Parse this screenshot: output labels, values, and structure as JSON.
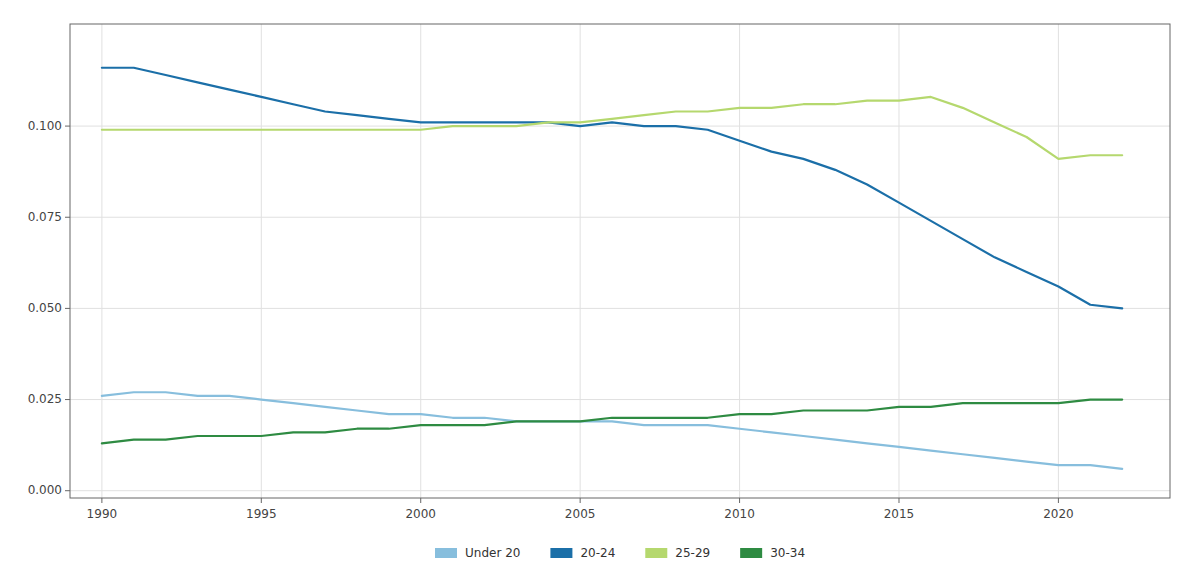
{
  "chart_data": {
    "type": "line",
    "x": [
      1990,
      1991,
      1992,
      1993,
      1994,
      1995,
      1996,
      1997,
      1998,
      1999,
      2000,
      2001,
      2002,
      2003,
      2004,
      2005,
      2006,
      2007,
      2008,
      2009,
      2010,
      2011,
      2012,
      2013,
      2014,
      2015,
      2016,
      2017,
      2018,
      2019,
      2020,
      2021,
      2022
    ],
    "series": [
      {
        "name": "Under 20",
        "color": "#87BEDD",
        "values": [
          0.026,
          0.027,
          0.027,
          0.026,
          0.026,
          0.025,
          0.024,
          0.023,
          0.022,
          0.021,
          0.021,
          0.02,
          0.02,
          0.019,
          0.019,
          0.019,
          0.019,
          0.018,
          0.018,
          0.018,
          0.017,
          0.016,
          0.015,
          0.014,
          0.013,
          0.012,
          0.011,
          0.01,
          0.009,
          0.008,
          0.007,
          0.007,
          0.006
        ]
      },
      {
        "name": "20-24",
        "color": "#1B6FA8",
        "values": [
          0.116,
          0.116,
          0.114,
          0.112,
          0.11,
          0.108,
          0.106,
          0.104,
          0.103,
          0.102,
          0.101,
          0.101,
          0.101,
          0.101,
          0.101,
          0.1,
          0.101,
          0.1,
          0.1,
          0.099,
          0.096,
          0.093,
          0.091,
          0.088,
          0.084,
          0.079,
          0.074,
          0.069,
          0.064,
          0.06,
          0.056,
          0.051,
          0.05
        ]
      },
      {
        "name": "25-29",
        "color": "#B5D86E",
        "values": [
          0.099,
          0.099,
          0.099,
          0.099,
          0.099,
          0.099,
          0.099,
          0.099,
          0.099,
          0.099,
          0.099,
          0.1,
          0.1,
          0.1,
          0.101,
          0.101,
          0.102,
          0.103,
          0.104,
          0.104,
          0.105,
          0.105,
          0.106,
          0.106,
          0.107,
          0.107,
          0.108,
          0.105,
          0.101,
          0.097,
          0.091,
          0.092,
          0.092
        ]
      },
      {
        "name": "30-34",
        "color": "#2E8B42",
        "values": [
          0.013,
          0.014,
          0.014,
          0.015,
          0.015,
          0.015,
          0.016,
          0.016,
          0.017,
          0.017,
          0.018,
          0.018,
          0.018,
          0.019,
          0.019,
          0.019,
          0.02,
          0.02,
          0.02,
          0.02,
          0.021,
          0.021,
          0.022,
          0.022,
          0.022,
          0.023,
          0.023,
          0.024,
          0.024,
          0.024,
          0.024,
          0.025,
          0.025
        ]
      }
    ],
    "xlim": [
      1989.0,
      2023.5
    ],
    "ylim": [
      -0.002,
      0.128
    ],
    "xticks": [
      1990,
      1995,
      2000,
      2005,
      2010,
      2015,
      2020
    ],
    "yticks": [
      {
        "value": 0.0,
        "label": "0.000"
      },
      0.025,
      {
        "value": 0.05,
        "label": "0.050"
      },
      0.075,
      {
        "value": 0.1,
        "label": "0.100"
      }
    ],
    "grid": true,
    "legend": "bottom"
  }
}
